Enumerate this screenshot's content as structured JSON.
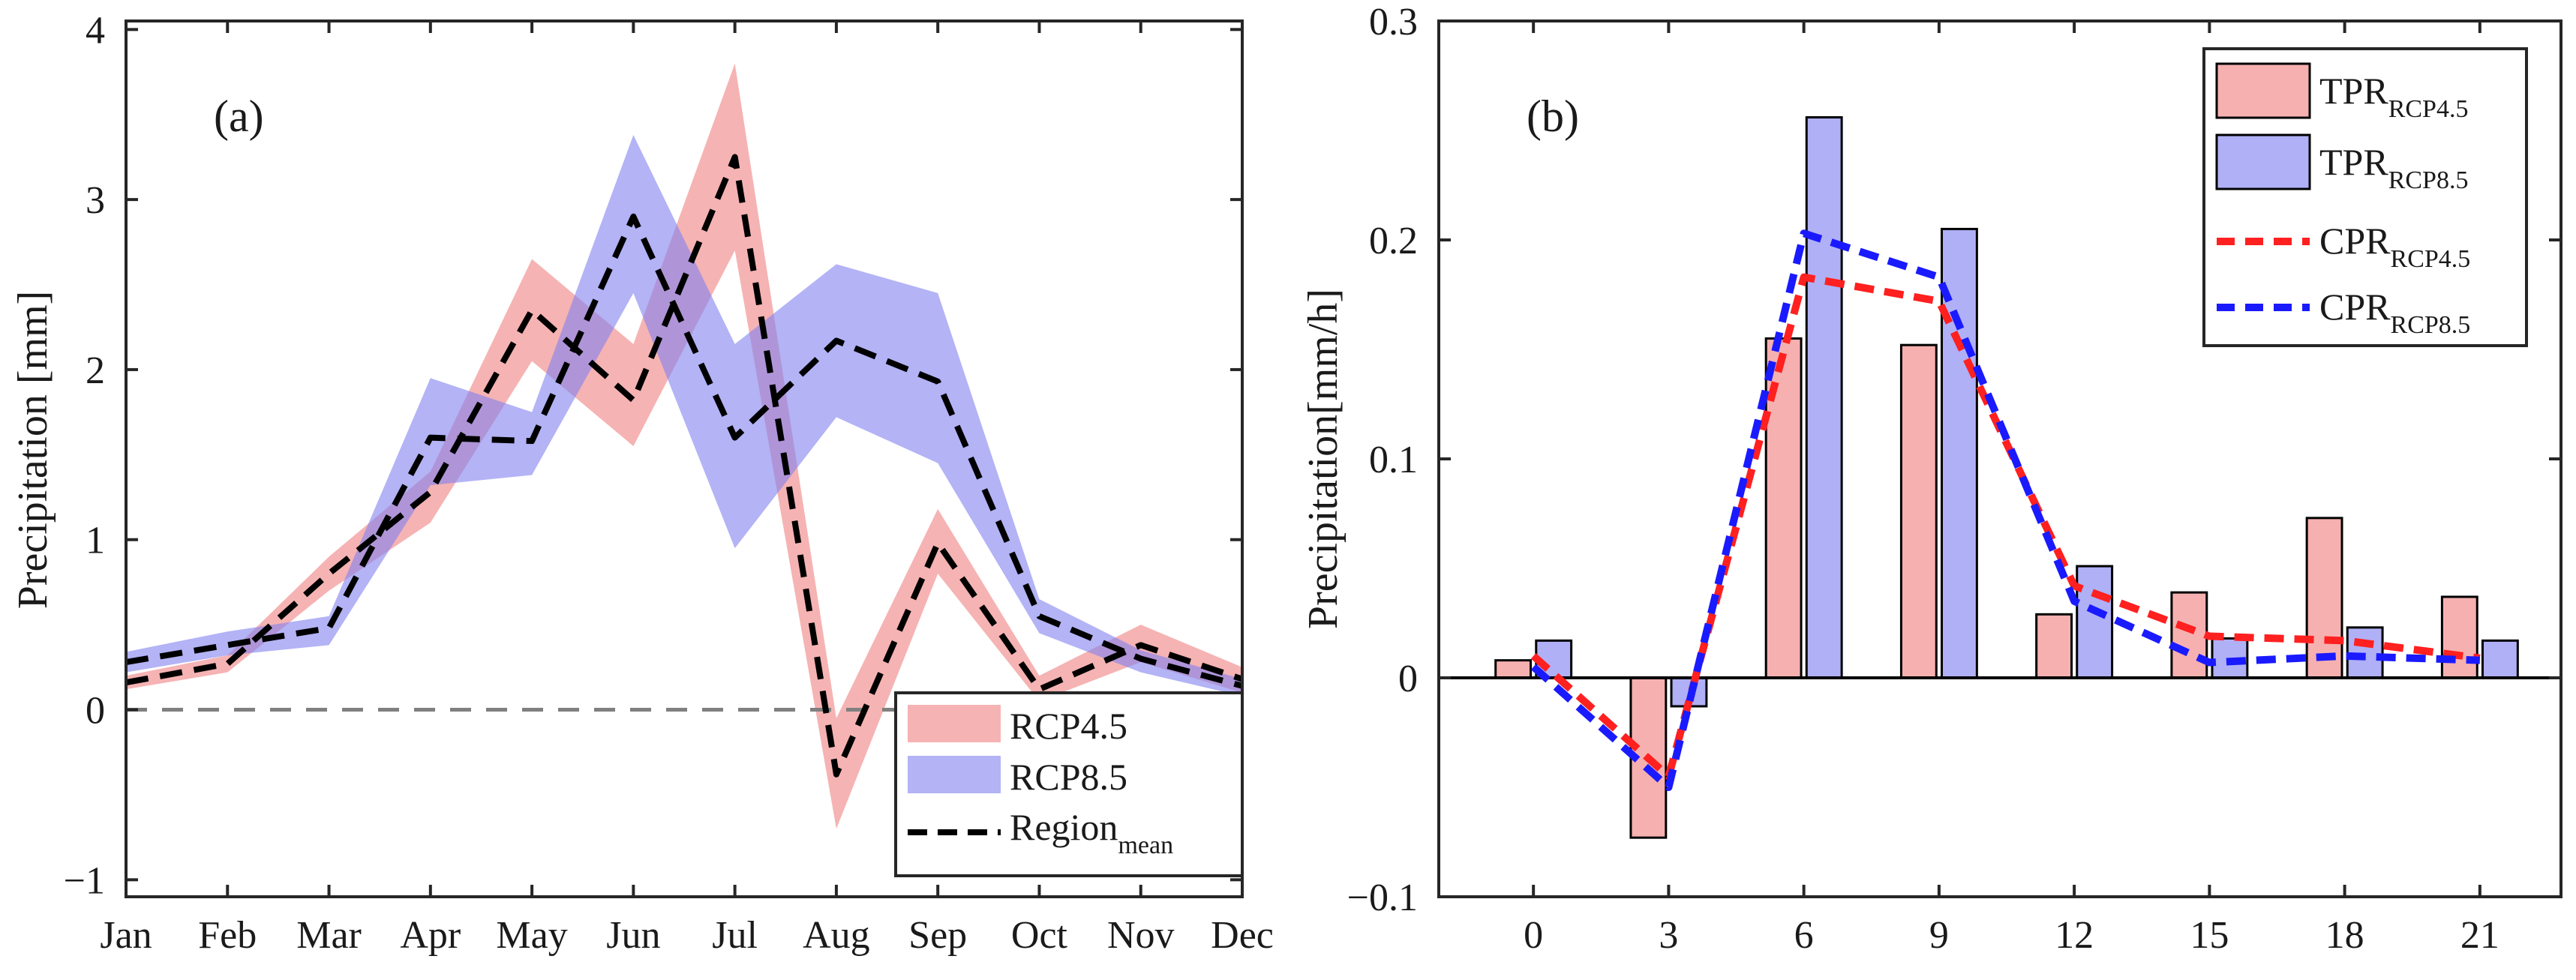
{
  "chart_data": [
    {
      "id": "a",
      "type": "area",
      "panel_label": "(a)",
      "title": "",
      "xlabel": "",
      "ylabel": "Precipitation [mm]",
      "categories": [
        "Jan",
        "Feb",
        "Mar",
        "Apr",
        "May",
        "Jun",
        "Jul",
        "Aug",
        "Sep",
        "Oct",
        "Nov",
        "Dec"
      ],
      "ylim": [
        -1.1,
        4.05
      ],
      "yticks": [
        -1,
        0,
        1,
        2,
        3,
        4
      ],
      "ytick_labels": [
        "−1",
        "0",
        "1",
        "2",
        "3",
        "4"
      ],
      "reference_line": 0,
      "bands": [
        {
          "name": "RCP4.5",
          "color": "#f08080",
          "lower": [
            0.12,
            0.22,
            0.7,
            1.1,
            2.05,
            1.55,
            2.7,
            -0.7,
            0.8,
            0.05,
            0.28,
            0.1
          ],
          "upper": [
            0.2,
            0.32,
            0.9,
            1.4,
            2.65,
            2.15,
            3.8,
            -0.05,
            1.18,
            0.2,
            0.5,
            0.25
          ]
        },
        {
          "name": "RCP8.5",
          "color": "#8080f0",
          "lower": [
            0.22,
            0.32,
            0.38,
            1.32,
            1.38,
            2.45,
            0.95,
            1.72,
            1.45,
            0.45,
            0.22,
            0.08
          ],
          "upper": [
            0.34,
            0.46,
            0.55,
            1.95,
            1.75,
            3.38,
            2.15,
            2.62,
            2.45,
            0.65,
            0.35,
            0.18
          ]
        }
      ],
      "series": [
        {
          "name": "Region",
          "name_sub": "mean",
          "style": "dashed",
          "color": "#000000",
          "values": [
            0.28,
            0.38,
            0.48,
            1.6,
            1.58,
            2.9,
            1.6,
            2.17,
            1.93,
            0.55,
            0.3,
            0.14
          ]
        },
        {
          "name": "Region_mean (RCP4.5)",
          "style": "dashed",
          "color": "#000000",
          "values": [
            0.16,
            0.27,
            0.8,
            1.28,
            2.35,
            1.82,
            3.25,
            -0.38,
            0.98,
            0.12,
            0.38,
            0.18
          ]
        }
      ],
      "legend": {
        "position": "bottom-right",
        "entries": [
          {
            "label": "RCP4.5",
            "sub": ""
          },
          {
            "label": "RCP8.5",
            "sub": ""
          },
          {
            "label": "Region",
            "sub": "mean"
          }
        ]
      }
    },
    {
      "id": "b",
      "type": "bar",
      "panel_label": "(b)",
      "title": "",
      "xlabel": "",
      "ylabel": "Precipitation[mm/h]",
      "x": [
        0,
        3,
        6,
        9,
        12,
        15,
        18,
        21
      ],
      "xtick_labels": [
        "0",
        "3",
        "6",
        "9",
        "12",
        "15",
        "18",
        "21"
      ],
      "ylim": [
        -0.1,
        0.3
      ],
      "yticks": [
        -0.1,
        0,
        0.1,
        0.2,
        0.3
      ],
      "ytick_labels": [
        "−0.1",
        "0",
        "0.1",
        "0.2",
        "0.3"
      ],
      "reference_line": 0,
      "bar_series": [
        {
          "name": "TPR",
          "sub": "RCP4.5",
          "color": "#f6b0b0",
          "values": [
            0.008,
            -0.073,
            0.155,
            0.152,
            0.029,
            0.039,
            0.073,
            0.037
          ]
        },
        {
          "name": "TPR",
          "sub": "RCP8.5",
          "color": "#b0b0f6",
          "values": [
            0.017,
            -0.013,
            0.256,
            0.205,
            0.051,
            0.018,
            0.023,
            0.017
          ]
        }
      ],
      "line_series": [
        {
          "name": "CPR",
          "sub": "RCP4.5",
          "color": "#ff2020",
          "style": "dashed",
          "values": [
            0.01,
            -0.045,
            0.183,
            0.172,
            0.042,
            0.019,
            0.017,
            0.009
          ]
        },
        {
          "name": "CPR",
          "sub": "RCP8.5",
          "color": "#1a1aff",
          "style": "dashed",
          "values": [
            0.005,
            -0.05,
            0.203,
            0.183,
            0.035,
            0.007,
            0.01,
            0.008
          ]
        }
      ],
      "legend": {
        "position": "top-right",
        "entries": [
          {
            "label": "TPR",
            "sub": "RCP4.5"
          },
          {
            "label": "TPR",
            "sub": "RCP8.5"
          },
          {
            "label": "CPR",
            "sub": "RCP4.5"
          },
          {
            "label": "CPR",
            "sub": "RCP8.5"
          }
        ]
      }
    }
  ]
}
